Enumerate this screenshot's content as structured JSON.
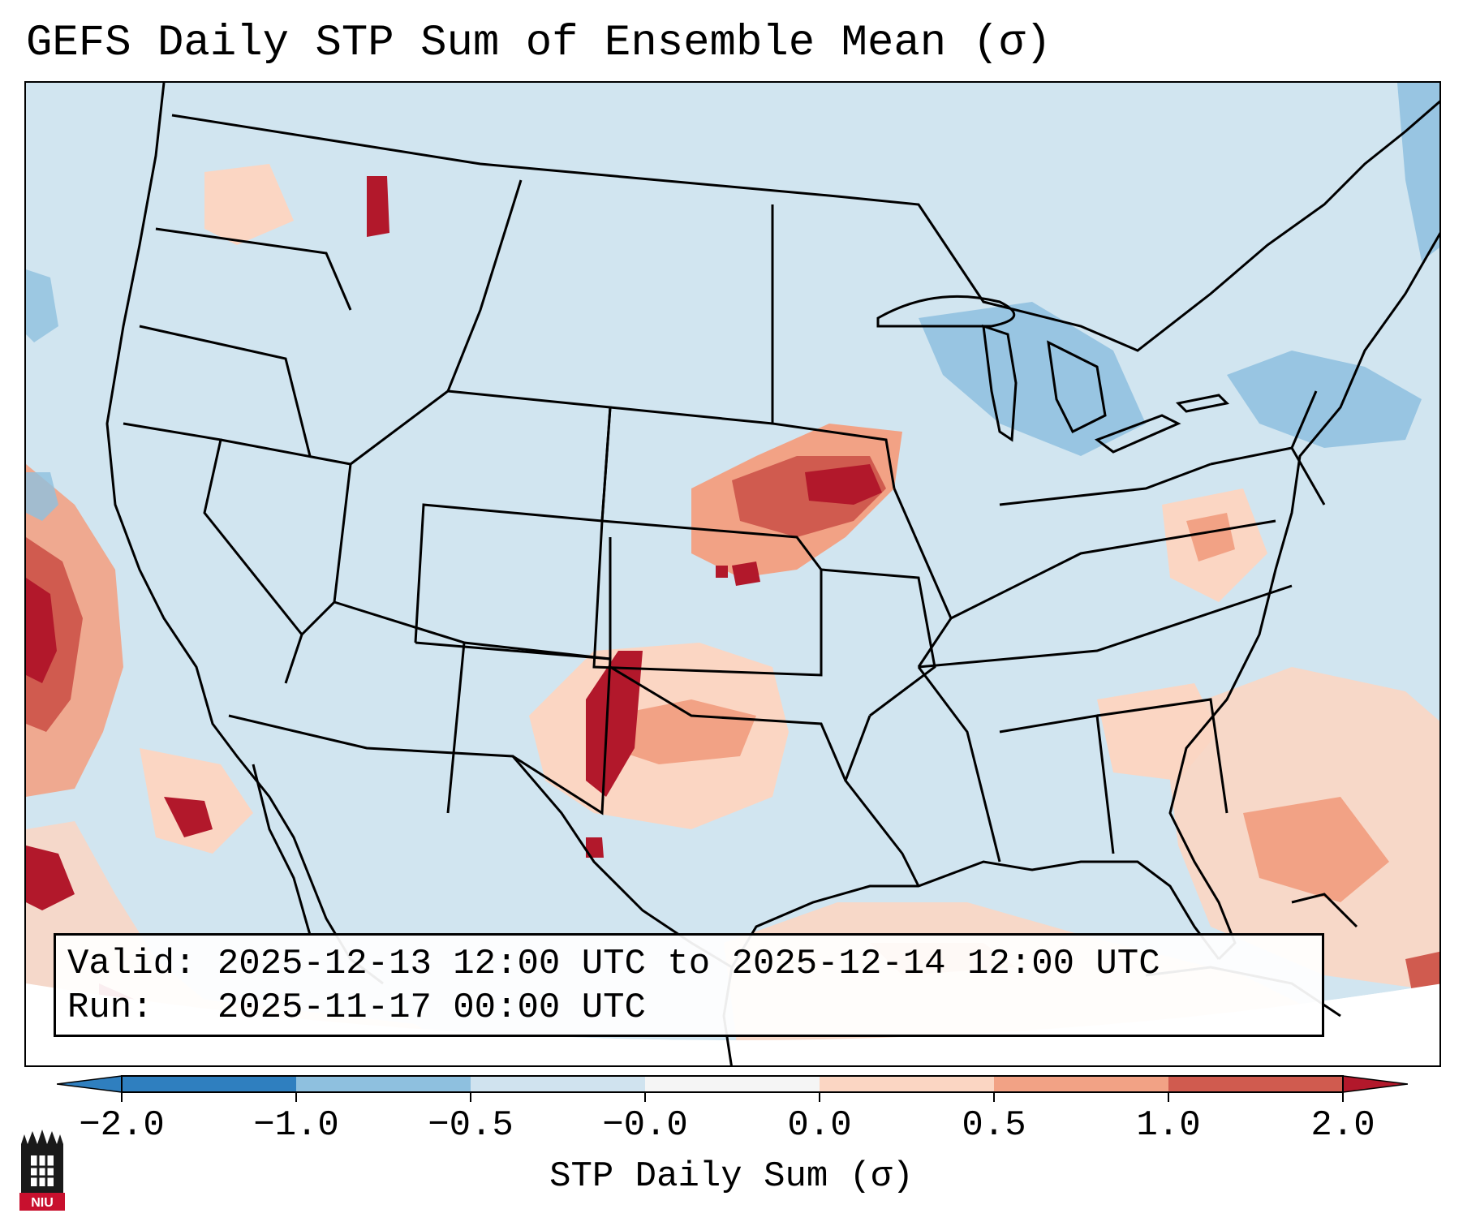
{
  "title": "GEFS Daily STP Sum of Ensemble Mean (σ)",
  "info": {
    "valid_line": "Valid: 2025-12-13 12:00 UTC to 2025-12-14 12:00 UTC",
    "run_line": "Run:   2025-11-17 00:00 UTC"
  },
  "colorbar": {
    "label": "STP Daily Sum (σ)",
    "ticks": [
      "−2.0",
      "−1.0",
      "−0.5",
      "−0.0",
      "0.0",
      "0.5",
      "1.0",
      "2.0"
    ],
    "colors": [
      "#2f7fbf",
      "#8ec0df",
      "#d0e3ef",
      "#f5f5f5",
      "#fbd6c3",
      "#f2a285",
      "#d05b4f",
      "#b2182b"
    ],
    "extend": "both"
  },
  "logo": {
    "text": "NIU"
  },
  "map": {
    "projection": "Lambert Conformal",
    "region": "CONUS",
    "background_color": "#d1e5f0",
    "coastline_color": "#000000",
    "features": [
      {
        "name": "Northern Plains / Upper Midwest max",
        "value": 2.0
      },
      {
        "name": "Texas Panhandle / Eastern New Mexico max",
        "value": 2.0
      },
      {
        "name": "Southern Plains moderate",
        "value": 1.0
      },
      {
        "name": "Mid-Atlantic light",
        "value": 0.5
      },
      {
        "name": "Great Lakes negative",
        "value": -1.0
      },
      {
        "name": "Gulf of Mexico light",
        "value": 0.5
      },
      {
        "name": "Pacific offshore max",
        "value": 2.0
      }
    ]
  }
}
